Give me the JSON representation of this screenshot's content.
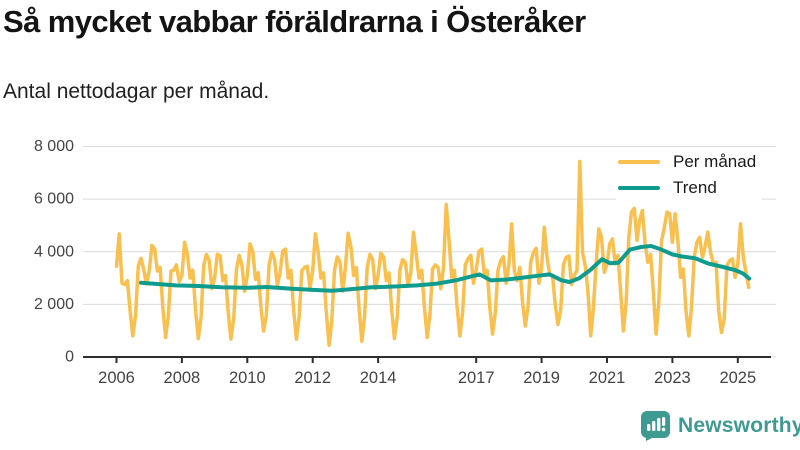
{
  "header": {
    "title": "Så mycket vabbar föräldrarna i Österåker",
    "subtitle": "Antal nettodagar per månad."
  },
  "chart_data": {
    "type": "line",
    "title": "Så mycket vabbar föräldrarna i Österåker",
    "xlabel": "",
    "ylabel": "",
    "grid": true,
    "legend_position": "top-right",
    "ylim": [
      0,
      8000
    ],
    "ytick_values": [
      0,
      2000,
      4000,
      6000,
      8000
    ],
    "ytick_labels": [
      "0",
      "2 000",
      "4 000",
      "6 000",
      "8 000"
    ],
    "xtick_years": [
      2006,
      2008,
      2010,
      2012,
      2014,
      2017,
      2019,
      2021,
      2023,
      2025
    ],
    "xtick_labels": [
      "2006",
      "2008",
      "2010",
      "2012",
      "2014",
      "2017",
      "2019",
      "2021",
      "2023",
      "2025"
    ],
    "x_range_years": [
      2006.0,
      2025.42
    ],
    "series": [
      {
        "name": "Per månad",
        "color": "#FAC04F",
        "freq": "monthly",
        "start": "2006-01",
        "end": "2025-05",
        "values": [
          3450,
          4680,
          2800,
          2750,
          2900,
          1750,
          800,
          1600,
          3450,
          3750,
          3300,
          2780,
          3270,
          4240,
          4100,
          3270,
          3400,
          1900,
          740,
          1550,
          3270,
          3300,
          3500,
          2870,
          3100,
          4360,
          3900,
          3000,
          3300,
          1800,
          700,
          1500,
          3470,
          3900,
          3670,
          2600,
          3000,
          3900,
          3850,
          2900,
          3100,
          1700,
          680,
          1450,
          3300,
          3860,
          3500,
          2500,
          3100,
          4300,
          4000,
          2950,
          3200,
          1900,
          990,
          1600,
          3500,
          3980,
          3700,
          2700,
          3200,
          4020,
          4100,
          3000,
          3300,
          1800,
          680,
          1500,
          3280,
          3400,
          3450,
          2600,
          3300,
          4680,
          4000,
          3000,
          3200,
          1700,
          450,
          1400,
          3300,
          3800,
          3600,
          2500,
          3400,
          4700,
          4200,
          3100,
          3400,
          1900,
          600,
          1500,
          3400,
          3900,
          3700,
          2600,
          3100,
          3950,
          3800,
          2900,
          3200,
          1800,
          700,
          1500,
          3300,
          3700,
          3600,
          2700,
          3200,
          4740,
          3900,
          3000,
          3300,
          1900,
          740,
          1600,
          3350,
          3500,
          3400,
          2600,
          3400,
          5800,
          4500,
          3030,
          3300,
          1900,
          800,
          1700,
          3500,
          3730,
          3860,
          2800,
          3300,
          4020,
          4100,
          3100,
          3300,
          1900,
          870,
          1700,
          3300,
          3660,
          3810,
          2800,
          3500,
          5060,
          3260,
          2900,
          3400,
          2100,
          1180,
          1900,
          3600,
          3980,
          4130,
          2800,
          3400,
          4930,
          3800,
          3100,
          3100,
          2000,
          1230,
          1800,
          3500,
          3790,
          3840,
          2750,
          3100,
          3300,
          7430,
          3980,
          3470,
          2520,
          800,
          1880,
          3540,
          4870,
          4550,
          3220,
          3540,
          4300,
          4490,
          3540,
          3860,
          2520,
          990,
          2070,
          4550,
          5510,
          5650,
          4430,
          5200,
          5570,
          4300,
          3600,
          3900,
          2500,
          870,
          2100,
          4400,
          4900,
          5508,
          5445,
          4360,
          5445,
          4400,
          3030,
          3350,
          1760,
          800,
          1900,
          3790,
          4360,
          4550,
          3790,
          4200,
          4745,
          3980,
          3540,
          3600,
          1760,
          930,
          1440,
          3470,
          3660,
          3730,
          3030,
          3540,
          5060,
          3790,
          3220,
          2650
        ]
      },
      {
        "name": "Trend",
        "color": "#0F9B8D",
        "freq": "keypoints",
        "points": [
          [
            2006.75,
            2820
          ],
          [
            2007.2,
            2780
          ],
          [
            2007.8,
            2720
          ],
          [
            2008.5,
            2700
          ],
          [
            2009.2,
            2650
          ],
          [
            2010.0,
            2630
          ],
          [
            2010.6,
            2660
          ],
          [
            2011.3,
            2600
          ],
          [
            2012.0,
            2550
          ],
          [
            2012.6,
            2520
          ],
          [
            2013.2,
            2580
          ],
          [
            2013.8,
            2650
          ],
          [
            2014.5,
            2680
          ],
          [
            2015.2,
            2720
          ],
          [
            2015.8,
            2790
          ],
          [
            2016.4,
            2920
          ],
          [
            2016.9,
            3080
          ],
          [
            2017.1,
            3140
          ],
          [
            2017.45,
            2910
          ],
          [
            2017.9,
            2940
          ],
          [
            2018.4,
            3010
          ],
          [
            2018.9,
            3090
          ],
          [
            2019.25,
            3140
          ],
          [
            2019.6,
            2920
          ],
          [
            2019.85,
            2850
          ],
          [
            2020.15,
            2990
          ],
          [
            2020.5,
            3320
          ],
          [
            2020.85,
            3720
          ],
          [
            2021.1,
            3560
          ],
          [
            2021.35,
            3580
          ],
          [
            2021.7,
            4080
          ],
          [
            2022.05,
            4180
          ],
          [
            2022.35,
            4220
          ],
          [
            2022.65,
            4090
          ],
          [
            2023.0,
            3900
          ],
          [
            2023.3,
            3820
          ],
          [
            2023.7,
            3750
          ],
          [
            2024.1,
            3550
          ],
          [
            2024.55,
            3420
          ],
          [
            2024.9,
            3310
          ],
          [
            2025.15,
            3180
          ],
          [
            2025.35,
            2980
          ]
        ]
      }
    ],
    "annotations": {
      "peak_value": 7430,
      "peak_month": "2020-03"
    },
    "colors": {
      "gridline": "#DCDCDC",
      "axis": "#2E2E2E",
      "tick_label": "#444444"
    }
  },
  "legend": {
    "items": [
      {
        "label": "Per månad",
        "color": "#FAC04F"
      },
      {
        "label": "Trend",
        "color": "#0F9B8D"
      }
    ]
  },
  "footer": {
    "brand": "Newsworthy",
    "brand_color": "#3F9A91",
    "logo_icon": "speech-bubble-bar-chart-icon"
  }
}
